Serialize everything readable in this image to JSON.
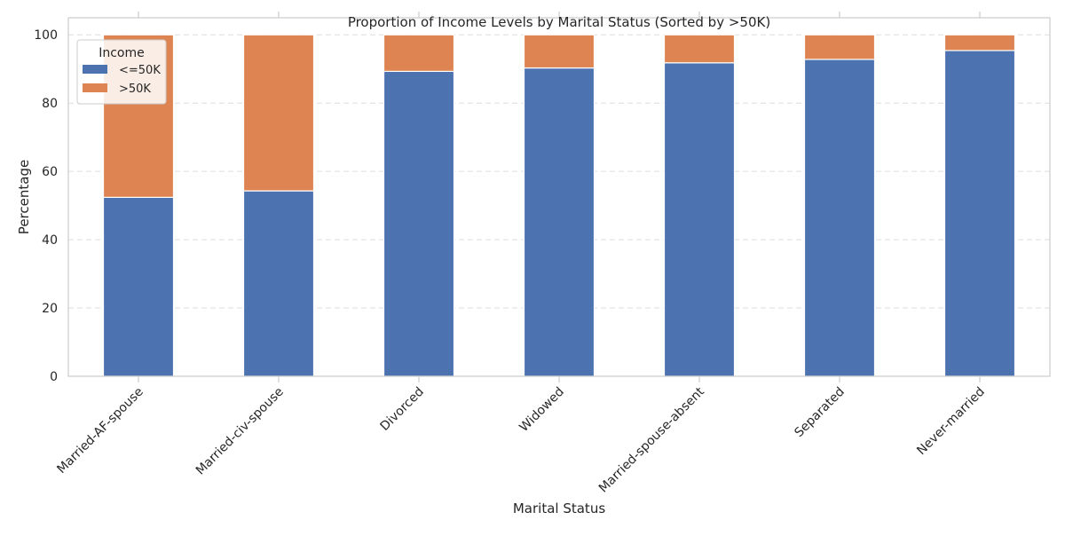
{
  "chart_data": {
    "type": "bar",
    "stacked": true,
    "title": "Proportion of Income Levels by Marital Status (Sorted by >50K)",
    "xlabel": "Marital Status",
    "ylabel": "Percentage",
    "ylim": [
      0,
      105
    ],
    "yticks": [
      0,
      20,
      40,
      60,
      80,
      100
    ],
    "grid": "y, dashed",
    "legend": {
      "title": "Income",
      "placement": "top-left"
    },
    "categories": [
      "Married-AF-spouse",
      "Married-civ-spouse",
      "Divorced",
      "Widowed",
      "Married-spouse-absent",
      "Separated",
      "Never-married"
    ],
    "series": [
      {
        "name": "<=50K",
        "color": "#4c72b0",
        "values": [
          52.4,
          54.3,
          89.3,
          90.3,
          91.8,
          92.8,
          95.4
        ]
      },
      {
        "name": ">50K",
        "color": "#dd8452",
        "values": [
          47.6,
          45.7,
          10.7,
          9.7,
          8.2,
          7.2,
          4.6
        ]
      }
    ]
  }
}
